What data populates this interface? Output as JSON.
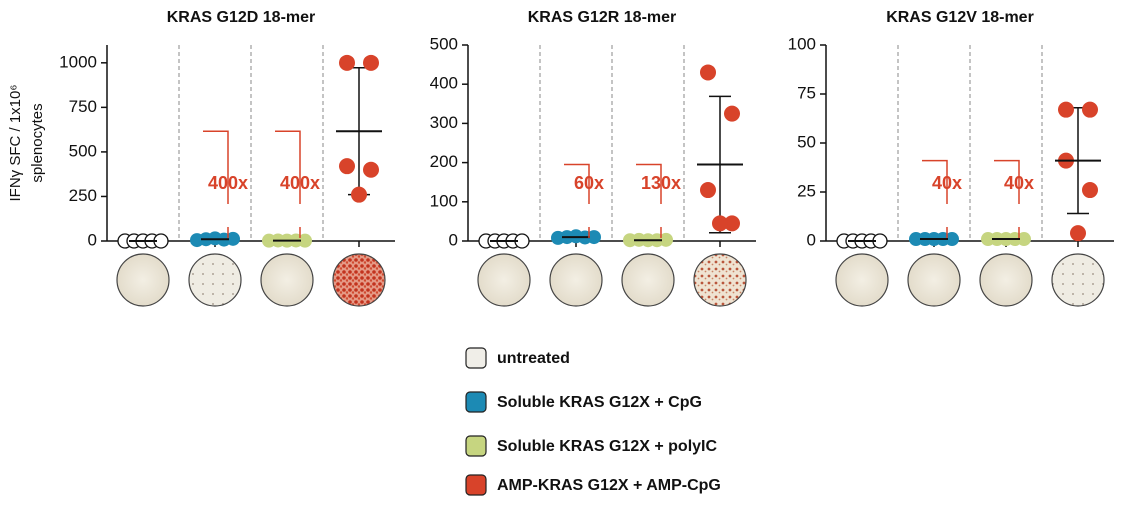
{
  "legend": [
    {
      "name": "untreated",
      "color": "#f0eee8"
    },
    {
      "name": "Soluble KRAS G12X + CpG",
      "color": "#1c8ab4"
    },
    {
      "name": "Soluble KRAS G12X + polyIC",
      "color": "#c6d580"
    },
    {
      "name": "AMP-KRAS G12X + AMP-CpG",
      "color": "#d8432a"
    }
  ],
  "chart_data": [
    {
      "type": "dot",
      "title": "KRAS G12D 18-mer",
      "ylabel": [
        "IFNγ SFC / 1x10⁶",
        "splenocytes"
      ],
      "ylim": [
        0,
        1100
      ],
      "yticks": [
        0,
        250,
        500,
        750,
        1000
      ],
      "series": [
        {
          "values": [
            0,
            0,
            0,
            0,
            0
          ],
          "mean": 0,
          "sd": 0
        },
        {
          "values": [
            5,
            10,
            15,
            8,
            12
          ],
          "mean": 10,
          "sd": 4,
          "annotation": "400x"
        },
        {
          "values": [
            2,
            3,
            2,
            3,
            2
          ],
          "mean": 2,
          "sd": 1,
          "annotation": "400x"
        },
        {
          "values": [
            1000,
            1000,
            420,
            400,
            260
          ],
          "mean": 616,
          "sd": 356
        }
      ]
    },
    {
      "type": "dot",
      "title": "KRAS G12R 18-mer",
      "ylim": [
        0,
        500
      ],
      "yticks": [
        0,
        100,
        200,
        300,
        400,
        500
      ],
      "series": [
        {
          "values": [
            0,
            0,
            0,
            0,
            0
          ],
          "mean": 0,
          "sd": 0
        },
        {
          "values": [
            8,
            10,
            12,
            9,
            10
          ],
          "mean": 10,
          "sd": 2,
          "annotation": "60x"
        },
        {
          "values": [
            2,
            3,
            2,
            2,
            3
          ],
          "mean": 2,
          "sd": 1,
          "annotation": "130x"
        },
        {
          "values": [
            430,
            325,
            130,
            45,
            45
          ],
          "mean": 195,
          "sd": 174
        }
      ]
    },
    {
      "type": "dot",
      "title": "KRAS G12V 18-mer",
      "ylim": [
        0,
        100
      ],
      "yticks": [
        0,
        25,
        50,
        75,
        100
      ],
      "series": [
        {
          "values": [
            0,
            0,
            0,
            0,
            0
          ],
          "mean": 0,
          "sd": 0
        },
        {
          "values": [
            1,
            1,
            1,
            1,
            1
          ],
          "mean": 1,
          "sd": 0,
          "annotation": "40x"
        },
        {
          "values": [
            1,
            1,
            1,
            1,
            1
          ],
          "mean": 1,
          "sd": 0,
          "annotation": "40x"
        },
        {
          "values": [
            67,
            67,
            41,
            26,
            4
          ],
          "mean": 41,
          "sd": 27
        }
      ]
    }
  ]
}
